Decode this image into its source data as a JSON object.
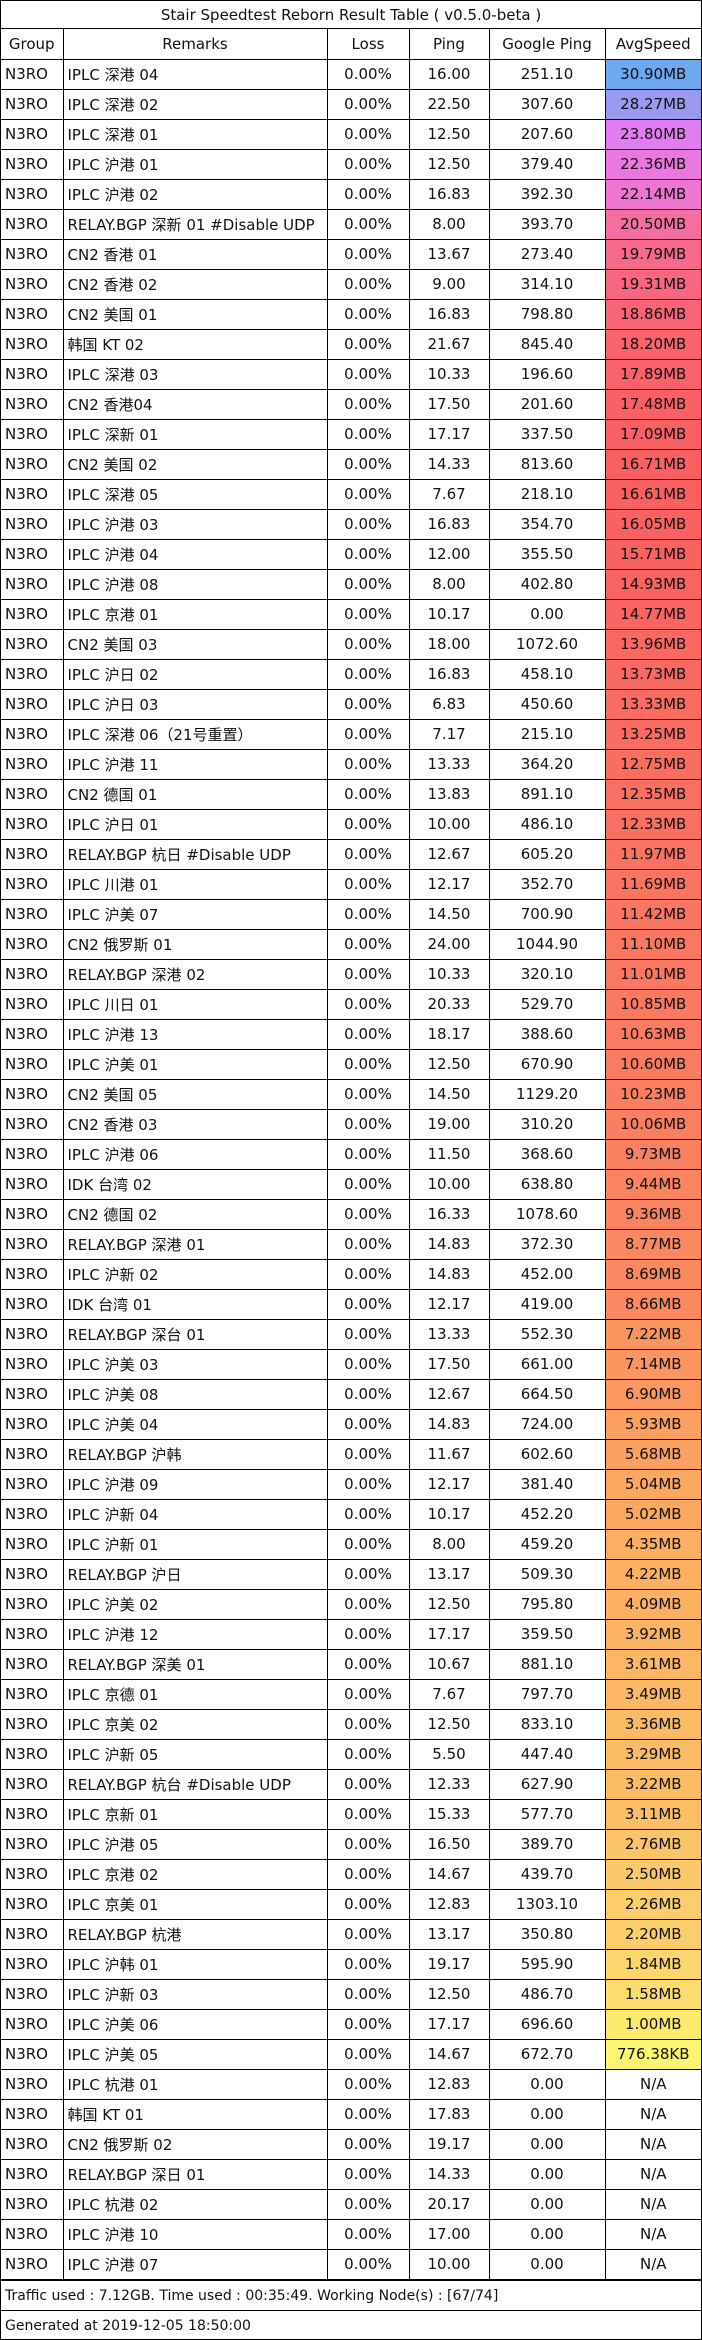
{
  "title": "Stair Speedtest Reborn Result Table ( v0.5.0-beta )",
  "columns": [
    "Group",
    "Remarks",
    "Loss",
    "Ping",
    "Google Ping",
    "AvgSpeed"
  ],
  "rows": [
    {
      "group": "N3RO",
      "remarks": "IPLC 深港 04",
      "loss": "0.00%",
      "ping": "16.00",
      "google_ping": "251.10",
      "avg_speed": "30.90MB",
      "speed_color": "#6ea8ef"
    },
    {
      "group": "N3RO",
      "remarks": "IPLC 深港 02",
      "loss": "0.00%",
      "ping": "22.50",
      "google_ping": "307.60",
      "avg_speed": "28.27MB",
      "speed_color": "#9a9bef"
    },
    {
      "group": "N3RO",
      "remarks": "IPLC 深港 01",
      "loss": "0.00%",
      "ping": "12.50",
      "google_ping": "207.60",
      "avg_speed": "23.80MB",
      "speed_color": "#e07eef"
    },
    {
      "group": "N3RO",
      "remarks": "IPLC 沪港 01",
      "loss": "0.00%",
      "ping": "12.50",
      "google_ping": "379.40",
      "avg_speed": "22.36MB",
      "speed_color": "#ea78de"
    },
    {
      "group": "N3RO",
      "remarks": "IPLC 沪港 02",
      "loss": "0.00%",
      "ping": "16.83",
      "google_ping": "392.30",
      "avg_speed": "22.14MB",
      "speed_color": "#ee76d2"
    },
    {
      "group": "N3RO",
      "remarks": "RELAY.BGP 深新 01 #Disable UDP",
      "loss": "0.00%",
      "ping": "8.00",
      "google_ping": "393.70",
      "avg_speed": "20.50MB",
      "speed_color": "#f56ea0"
    },
    {
      "group": "N3RO",
      "remarks": "CN2 香港 01",
      "loss": "0.00%",
      "ping": "13.67",
      "google_ping": "273.40",
      "avg_speed": "19.79MB",
      "speed_color": "#f7698a"
    },
    {
      "group": "N3RO",
      "remarks": "CN2 香港 02",
      "loss": "0.00%",
      "ping": "9.00",
      "google_ping": "314.10",
      "avg_speed": "19.31MB",
      "speed_color": "#f86680"
    },
    {
      "group": "N3RO",
      "remarks": "CN2 美国 01",
      "loss": "0.00%",
      "ping": "16.83",
      "google_ping": "798.80",
      "avg_speed": "18.86MB",
      "speed_color": "#f96476"
    },
    {
      "group": "N3RO",
      "remarks": "韩国 KT 02",
      "loss": "0.00%",
      "ping": "21.67",
      "google_ping": "845.40",
      "avg_speed": "18.20MB",
      "speed_color": "#fa626c"
    },
    {
      "group": "N3RO",
      "remarks": "IPLC 深港 03",
      "loss": "0.00%",
      "ping": "10.33",
      "google_ping": "196.60",
      "avg_speed": "17.89MB",
      "speed_color": "#fa6168"
    },
    {
      "group": "N3RO",
      "remarks": "CN2 香港04",
      "loss": "0.00%",
      "ping": "17.50",
      "google_ping": "201.60",
      "avg_speed": "17.48MB",
      "speed_color": "#fa6064"
    },
    {
      "group": "N3RO",
      "remarks": "IPLC 深新 01",
      "loss": "0.00%",
      "ping": "17.17",
      "google_ping": "337.50",
      "avg_speed": "17.09MB",
      "speed_color": "#fa6062"
    },
    {
      "group": "N3RO",
      "remarks": "CN2 美国 02",
      "loss": "0.00%",
      "ping": "14.33",
      "google_ping": "813.60",
      "avg_speed": "16.71MB",
      "speed_color": "#fa6060"
    },
    {
      "group": "N3RO",
      "remarks": "IPLC 深港 05",
      "loss": "0.00%",
      "ping": "7.67",
      "google_ping": "218.10",
      "avg_speed": "16.61MB",
      "speed_color": "#fa6060"
    },
    {
      "group": "N3RO",
      "remarks": "IPLC 沪港 03",
      "loss": "0.00%",
      "ping": "16.83",
      "google_ping": "354.70",
      "avg_speed": "16.05MB",
      "speed_color": "#fa6160"
    },
    {
      "group": "N3RO",
      "remarks": "IPLC 沪港 04",
      "loss": "0.00%",
      "ping": "12.00",
      "google_ping": "355.50",
      "avg_speed": "15.71MB",
      "speed_color": "#fa6260"
    },
    {
      "group": "N3RO",
      "remarks": "IPLC 沪港 08",
      "loss": "0.00%",
      "ping": "8.00",
      "google_ping": "402.80",
      "avg_speed": "14.93MB",
      "speed_color": "#fa6460"
    },
    {
      "group": "N3RO",
      "remarks": "IPLC 京港 01",
      "loss": "0.00%",
      "ping": "10.17",
      "google_ping": "0.00",
      "avg_speed": "14.77MB",
      "speed_color": "#fa6560"
    },
    {
      "group": "N3RO",
      "remarks": "CN2 美国 03",
      "loss": "0.00%",
      "ping": "18.00",
      "google_ping": "1072.60",
      "avg_speed": "13.96MB",
      "speed_color": "#fa6860"
    },
    {
      "group": "N3RO",
      "remarks": "IPLC 沪日 02",
      "loss": "0.00%",
      "ping": "16.83",
      "google_ping": "458.10",
      "avg_speed": "13.73MB",
      "speed_color": "#fa6960"
    },
    {
      "group": "N3RO",
      "remarks": "IPLC 沪日 03",
      "loss": "0.00%",
      "ping": "6.83",
      "google_ping": "450.60",
      "avg_speed": "13.33MB",
      "speed_color": "#fa6b60"
    },
    {
      "group": "N3RO",
      "remarks": "IPLC 深港 06（21号重置）",
      "loss": "0.00%",
      "ping": "7.17",
      "google_ping": "215.10",
      "avg_speed": "13.25MB",
      "speed_color": "#fa6b60"
    },
    {
      "group": "N3RO",
      "remarks": "IPLC 沪港 11",
      "loss": "0.00%",
      "ping": "13.33",
      "google_ping": "364.20",
      "avg_speed": "12.75MB",
      "speed_color": "#fa6e60"
    },
    {
      "group": "N3RO",
      "remarks": "CN2 德国 01",
      "loss": "0.00%",
      "ping": "13.83",
      "google_ping": "891.10",
      "avg_speed": "12.35MB",
      "speed_color": "#fa7060"
    },
    {
      "group": "N3RO",
      "remarks": "IPLC 沪日 01",
      "loss": "0.00%",
      "ping": "10.00",
      "google_ping": "486.10",
      "avg_speed": "12.33MB",
      "speed_color": "#fa7060"
    },
    {
      "group": "N3RO",
      "remarks": "RELAY.BGP 杭日 #Disable UDP",
      "loss": "0.00%",
      "ping": "12.67",
      "google_ping": "605.20",
      "avg_speed": "11.97MB",
      "speed_color": "#fa7260"
    },
    {
      "group": "N3RO",
      "remarks": "IPLC 川港 01",
      "loss": "0.00%",
      "ping": "12.17",
      "google_ping": "352.70",
      "avg_speed": "11.69MB",
      "speed_color": "#fa7460"
    },
    {
      "group": "N3RO",
      "remarks": "IPLC 沪美 07",
      "loss": "0.00%",
      "ping": "14.50",
      "google_ping": "700.90",
      "avg_speed": "11.42MB",
      "speed_color": "#fa7660"
    },
    {
      "group": "N3RO",
      "remarks": "CN2 俄罗斯 01",
      "loss": "0.00%",
      "ping": "24.00",
      "google_ping": "1044.90",
      "avg_speed": "11.10MB",
      "speed_color": "#fa7860"
    },
    {
      "group": "N3RO",
      "remarks": "RELAY.BGP 深港 02",
      "loss": "0.00%",
      "ping": "10.33",
      "google_ping": "320.10",
      "avg_speed": "11.01MB",
      "speed_color": "#fa7860"
    },
    {
      "group": "N3RO",
      "remarks": "IPLC 川日 01",
      "loss": "0.00%",
      "ping": "20.33",
      "google_ping": "529.70",
      "avg_speed": "10.85MB",
      "speed_color": "#fa7a60"
    },
    {
      "group": "N3RO",
      "remarks": "IPLC 沪港 13",
      "loss": "0.00%",
      "ping": "18.17",
      "google_ping": "388.60",
      "avg_speed": "10.63MB",
      "speed_color": "#fa7b60"
    },
    {
      "group": "N3RO",
      "remarks": "IPLC 沪美 01",
      "loss": "0.00%",
      "ping": "12.50",
      "google_ping": "670.90",
      "avg_speed": "10.60MB",
      "speed_color": "#fa7c60"
    },
    {
      "group": "N3RO",
      "remarks": "CN2 美国 05",
      "loss": "0.00%",
      "ping": "14.50",
      "google_ping": "1129.20",
      "avg_speed": "10.23MB",
      "speed_color": "#fa7e60"
    },
    {
      "group": "N3RO",
      "remarks": "CN2 香港 03",
      "loss": "0.00%",
      "ping": "19.00",
      "google_ping": "310.20",
      "avg_speed": "10.06MB",
      "speed_color": "#fa7f60"
    },
    {
      "group": "N3RO",
      "remarks": "IPLC 沪港 06",
      "loss": "0.00%",
      "ping": "11.50",
      "google_ping": "368.60",
      "avg_speed": "9.73MB",
      "speed_color": "#fa8160"
    },
    {
      "group": "N3RO",
      "remarks": "IDK 台湾 02",
      "loss": "0.00%",
      "ping": "10.00",
      "google_ping": "638.80",
      "avg_speed": "9.44MB",
      "speed_color": "#fa8360"
    },
    {
      "group": "N3RO",
      "remarks": "CN2 德国 02",
      "loss": "0.00%",
      "ping": "16.33",
      "google_ping": "1078.60",
      "avg_speed": "9.36MB",
      "speed_color": "#fa8460"
    },
    {
      "group": "N3RO",
      "remarks": "RELAY.BGP 深港 01",
      "loss": "0.00%",
      "ping": "14.83",
      "google_ping": "372.30",
      "avg_speed": "8.77MB",
      "speed_color": "#fb8860"
    },
    {
      "group": "N3RO",
      "remarks": "IPLC 沪新 02",
      "loss": "0.00%",
      "ping": "14.83",
      "google_ping": "452.00",
      "avg_speed": "8.69MB",
      "speed_color": "#fb8960"
    },
    {
      "group": "N3RO",
      "remarks": "IDK 台湾 01",
      "loss": "0.00%",
      "ping": "12.17",
      "google_ping": "419.00",
      "avg_speed": "8.66MB",
      "speed_color": "#fb8960"
    },
    {
      "group": "N3RO",
      "remarks": "RELAY.BGP 深台 01",
      "loss": "0.00%",
      "ping": "13.33",
      "google_ping": "552.30",
      "avg_speed": "7.22MB",
      "speed_color": "#fb9560"
    },
    {
      "group": "N3RO",
      "remarks": "IPLC 沪美 03",
      "loss": "0.00%",
      "ping": "17.50",
      "google_ping": "661.00",
      "avg_speed": "7.14MB",
      "speed_color": "#fb9660"
    },
    {
      "group": "N3RO",
      "remarks": "IPLC 沪美 08",
      "loss": "0.00%",
      "ping": "12.67",
      "google_ping": "664.50",
      "avg_speed": "6.90MB",
      "speed_color": "#fb9860"
    },
    {
      "group": "N3RO",
      "remarks": "IPLC 沪美 04",
      "loss": "0.00%",
      "ping": "14.83",
      "google_ping": "724.00",
      "avg_speed": "5.93MB",
      "speed_color": "#fca060"
    },
    {
      "group": "N3RO",
      "remarks": "RELAY.BGP 沪韩",
      "loss": "0.00%",
      "ping": "11.67",
      "google_ping": "602.60",
      "avg_speed": "5.68MB",
      "speed_color": "#fca260"
    },
    {
      "group": "N3RO",
      "remarks": "IPLC 沪港 09",
      "loss": "0.00%",
      "ping": "12.17",
      "google_ping": "381.40",
      "avg_speed": "5.04MB",
      "speed_color": "#fca860"
    },
    {
      "group": "N3RO",
      "remarks": "IPLC 沪新 04",
      "loss": "0.00%",
      "ping": "10.17",
      "google_ping": "452.20",
      "avg_speed": "5.02MB",
      "speed_color": "#fca860"
    },
    {
      "group": "N3RO",
      "remarks": "IPLC 沪新 01",
      "loss": "0.00%",
      "ping": "8.00",
      "google_ping": "459.20",
      "avg_speed": "4.35MB",
      "speed_color": "#fcae62"
    },
    {
      "group": "N3RO",
      "remarks": "RELAY.BGP 沪日",
      "loss": "0.00%",
      "ping": "13.17",
      "google_ping": "509.30",
      "avg_speed": "4.22MB",
      "speed_color": "#fcb062"
    },
    {
      "group": "N3RO",
      "remarks": "IPLC 沪美 02",
      "loss": "0.00%",
      "ping": "12.50",
      "google_ping": "795.80",
      "avg_speed": "4.09MB",
      "speed_color": "#fcb162"
    },
    {
      "group": "N3RO",
      "remarks": "IPLC 沪港 12",
      "loss": "0.00%",
      "ping": "17.17",
      "google_ping": "359.50",
      "avg_speed": "3.92MB",
      "speed_color": "#fcb363"
    },
    {
      "group": "N3RO",
      "remarks": "RELAY.BGP 深美 01",
      "loss": "0.00%",
      "ping": "10.67",
      "google_ping": "881.10",
      "avg_speed": "3.61MB",
      "speed_color": "#fcb664"
    },
    {
      "group": "N3RO",
      "remarks": "IPLC 京德 01",
      "loss": "0.00%",
      "ping": "7.67",
      "google_ping": "797.70",
      "avg_speed": "3.49MB",
      "speed_color": "#fcb864"
    },
    {
      "group": "N3RO",
      "remarks": "IPLC 京美 02",
      "loss": "0.00%",
      "ping": "12.50",
      "google_ping": "833.10",
      "avg_speed": "3.36MB",
      "speed_color": "#fcba65"
    },
    {
      "group": "N3RO",
      "remarks": "IPLC 沪新 05",
      "loss": "0.00%",
      "ping": "5.50",
      "google_ping": "447.40",
      "avg_speed": "3.29MB",
      "speed_color": "#fcbb65"
    },
    {
      "group": "N3RO",
      "remarks": "RELAY.BGP 杭台 #Disable UDP",
      "loss": "0.00%",
      "ping": "12.33",
      "google_ping": "627.90",
      "avg_speed": "3.22MB",
      "speed_color": "#fcbc66"
    },
    {
      "group": "N3RO",
      "remarks": "IPLC 京新 01",
      "loss": "0.00%",
      "ping": "15.33",
      "google_ping": "577.70",
      "avg_speed": "3.11MB",
      "speed_color": "#fcbe66"
    },
    {
      "group": "N3RO",
      "remarks": "IPLC 沪港 05",
      "loss": "0.00%",
      "ping": "16.50",
      "google_ping": "389.70",
      "avg_speed": "2.76MB",
      "speed_color": "#fcc468"
    },
    {
      "group": "N3RO",
      "remarks": "IPLC 京港 02",
      "loss": "0.00%",
      "ping": "14.67",
      "google_ping": "439.70",
      "avg_speed": "2.50MB",
      "speed_color": "#fcc96a"
    },
    {
      "group": "N3RO",
      "remarks": "IPLC 京美 01",
      "loss": "0.00%",
      "ping": "12.83",
      "google_ping": "1303.10",
      "avg_speed": "2.26MB",
      "speed_color": "#fccd6b"
    },
    {
      "group": "N3RO",
      "remarks": "RELAY.BGP 杭港",
      "loss": "0.00%",
      "ping": "13.17",
      "google_ping": "350.80",
      "avg_speed": "2.20MB",
      "speed_color": "#fcce6b"
    },
    {
      "group": "N3RO",
      "remarks": "IPLC 沪韩 01",
      "loss": "0.00%",
      "ping": "19.17",
      "google_ping": "595.90",
      "avg_speed": "1.84MB",
      "speed_color": "#fcd56d"
    },
    {
      "group": "N3RO",
      "remarks": "IPLC 沪新 03",
      "loss": "0.00%",
      "ping": "12.50",
      "google_ping": "486.70",
      "avg_speed": "1.58MB",
      "speed_color": "#fcdc6e"
    },
    {
      "group": "N3RO",
      "remarks": "IPLC 沪美 06",
      "loss": "0.00%",
      "ping": "17.17",
      "google_ping": "696.60",
      "avg_speed": "1.00MB",
      "speed_color": "#fcea6f"
    },
    {
      "group": "N3RO",
      "remarks": "IPLC 沪美 05",
      "loss": "0.00%",
      "ping": "14.67",
      "google_ping": "672.70",
      "avg_speed": "776.38KB",
      "speed_color": "#fcf571"
    },
    {
      "group": "N3RO",
      "remarks": "IPLC 杭港 01",
      "loss": "0.00%",
      "ping": "12.83",
      "google_ping": "0.00",
      "avg_speed": "N/A",
      "speed_color": "#ffffff"
    },
    {
      "group": "N3RO",
      "remarks": "韩国 KT 01",
      "loss": "0.00%",
      "ping": "17.83",
      "google_ping": "0.00",
      "avg_speed": "N/A",
      "speed_color": "#ffffff"
    },
    {
      "group": "N3RO",
      "remarks": "CN2 俄罗斯 02",
      "loss": "0.00%",
      "ping": "19.17",
      "google_ping": "0.00",
      "avg_speed": "N/A",
      "speed_color": "#ffffff"
    },
    {
      "group": "N3RO",
      "remarks": "RELAY.BGP 深日 01",
      "loss": "0.00%",
      "ping": "14.33",
      "google_ping": "0.00",
      "avg_speed": "N/A",
      "speed_color": "#ffffff"
    },
    {
      "group": "N3RO",
      "remarks": "IPLC 杭港 02",
      "loss": "0.00%",
      "ping": "20.17",
      "google_ping": "0.00",
      "avg_speed": "N/A",
      "speed_color": "#ffffff"
    },
    {
      "group": "N3RO",
      "remarks": "IPLC 沪港 10",
      "loss": "0.00%",
      "ping": "17.00",
      "google_ping": "0.00",
      "avg_speed": "N/A",
      "speed_color": "#ffffff"
    },
    {
      "group": "N3RO",
      "remarks": "IPLC 沪港 07",
      "loss": "0.00%",
      "ping": "10.00",
      "google_ping": "0.00",
      "avg_speed": "N/A",
      "speed_color": "#ffffff"
    }
  ],
  "footer": {
    "summary": "Traffic used : 7.12GB. Time used : 00:35:49. Working Node(s) : [67/74]",
    "generated": "Generated at 2019-12-05 18:50:00"
  }
}
